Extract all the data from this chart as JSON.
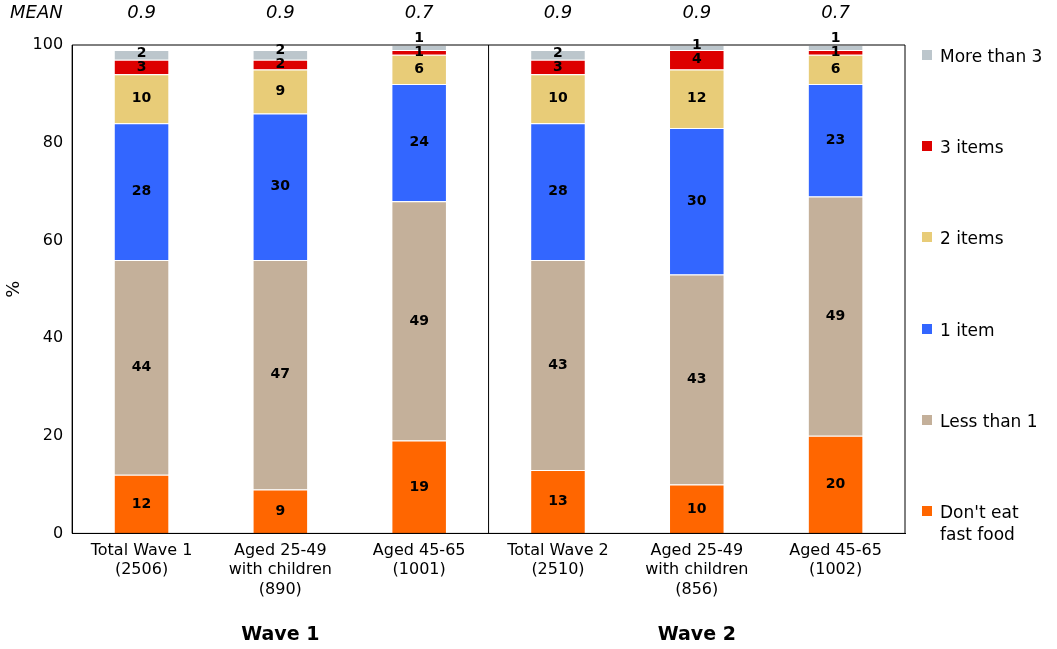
{
  "chart_data": {
    "type": "bar",
    "stacked": true,
    "ylabel": "%",
    "ylim": [
      0,
      100
    ],
    "yticks": [
      0,
      20,
      40,
      60,
      80,
      100
    ],
    "grid": false,
    "legend": "right",
    "data_labels": true,
    "categories": [
      "Total Wave 1\n(2506)",
      "Aged 25-49\nwith children\n(890)",
      "Aged 45-65\n(1001)",
      "Total Wave 2\n(2510)",
      "Aged 25-49\nwith children\n(856)",
      "Aged 45-65\n(1002)"
    ],
    "series": [
      {
        "name": "Don't eat\nfast food",
        "color": "#ff6600",
        "values": [
          12,
          9,
          19,
          13,
          10,
          20
        ]
      },
      {
        "name": "Less than 1",
        "color": "#c4b09a",
        "values": [
          44,
          47,
          49,
          43,
          43,
          49
        ]
      },
      {
        "name": "1 item",
        "color": "#3366ff",
        "values": [
          28,
          30,
          24,
          28,
          30,
          23
        ]
      },
      {
        "name": "2 items",
        "color": "#e8cc78",
        "values": [
          10,
          9,
          6,
          10,
          12,
          6
        ]
      },
      {
        "name": "3 items",
        "color": "#dd0000",
        "values": [
          3,
          2,
          1,
          3,
          4,
          1
        ]
      },
      {
        "name": "More than 3",
        "color": "#bcc6cc",
        "values": [
          2,
          2,
          1,
          2,
          1,
          1
        ]
      }
    ],
    "annotations": [
      "MEAN",
      "0.9",
      "0.9",
      "0.7",
      "0.9",
      "0.9",
      "0.7",
      "Wave 1",
      "Wave 2"
    ]
  }
}
